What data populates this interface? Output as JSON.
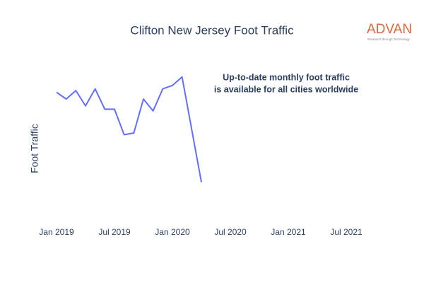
{
  "chart_data": {
    "type": "line",
    "title": "Clifton New Jersey Foot Traffic",
    "y_label": "Foot Traffic",
    "annotation": [
      "Up-to-date monthly foot traffic",
      "is available for all cities worldwide"
    ],
    "logo": {
      "name": "ADVAN",
      "tagline": "Research through Technology"
    },
    "x": [
      "2019-01",
      "2019-02",
      "2019-03",
      "2019-04",
      "2019-05",
      "2019-06",
      "2019-07",
      "2019-08",
      "2019-09",
      "2019-10",
      "2019-11",
      "2019-12",
      "2020-01",
      "2020-02",
      "2020-03",
      "2020-04"
    ],
    "series": [
      {
        "name": "Foot Traffic",
        "color": "#636efa",
        "values": [
          79,
          75,
          80,
          71,
          81,
          69,
          69,
          54,
          55,
          75,
          68,
          81,
          83,
          88,
          57,
          26
        ]
      }
    ],
    "xlim": [
      "2018-10",
      "2021-10"
    ],
    "xticks": [
      {
        "value": "2019-01",
        "label": "Jan 2019"
      },
      {
        "value": "2019-07",
        "label": "Jul 2019"
      },
      {
        "value": "2020-01",
        "label": "Jan 2020"
      },
      {
        "value": "2020-07",
        "label": "Jul 2020"
      },
      {
        "value": "2021-01",
        "label": "Jan 2021"
      },
      {
        "value": "2021-07",
        "label": "Jul 2021"
      }
    ],
    "ylim": [
      0,
      100
    ],
    "grid": false
  }
}
